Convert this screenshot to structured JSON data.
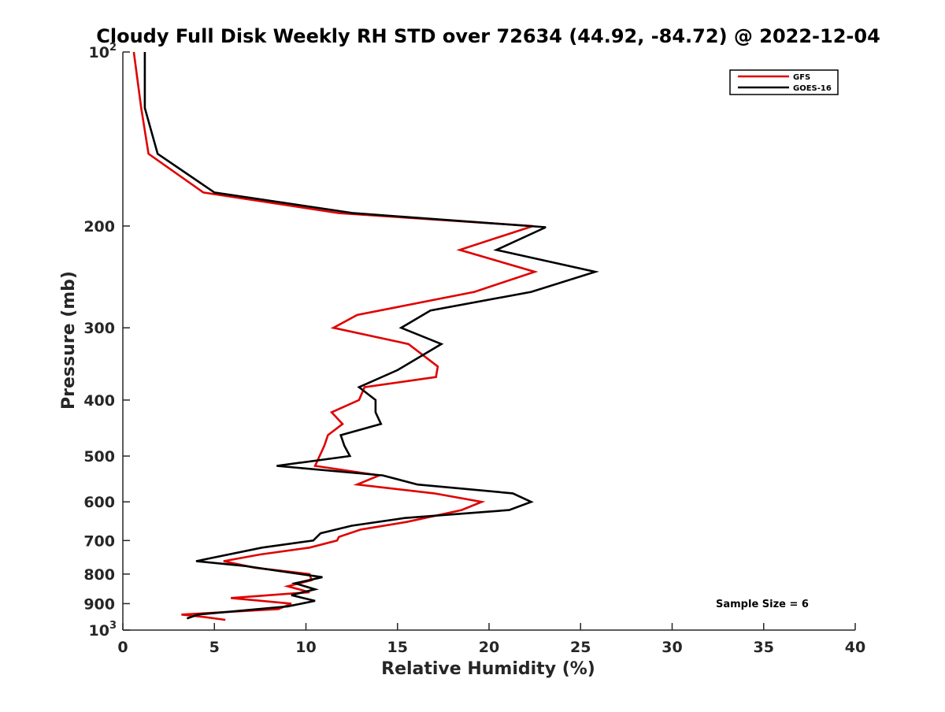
{
  "chart_data": {
    "type": "line",
    "title": "Cloudy Full Disk Weekly RH STD over 72634 (44.92, -84.72) @ 2022-12-04",
    "xlabel": "Relative Humidity (%)",
    "ylabel": "Pressure (mb)",
    "xlim": [
      0,
      40
    ],
    "ylim": [
      100,
      1000
    ],
    "y_scale": "log",
    "y_reversed": true,
    "grid": false,
    "legend_position": "top-right",
    "x_ticks": [
      "0",
      "5",
      "10",
      "15",
      "20",
      "25",
      "30",
      "35",
      "40"
    ],
    "y_ticks": [
      {
        "value": 100,
        "base": "10",
        "exp": "2",
        "label": ""
      },
      {
        "value": 200,
        "label": "200"
      },
      {
        "value": 300,
        "label": "300"
      },
      {
        "value": 400,
        "label": "400"
      },
      {
        "value": 500,
        "label": "500"
      },
      {
        "value": 600,
        "label": "600"
      },
      {
        "value": 700,
        "label": "700"
      },
      {
        "value": 800,
        "label": "800"
      },
      {
        "value": 900,
        "label": "900"
      },
      {
        "value": 1000,
        "base": "10",
        "exp": "3",
        "label": ""
      }
    ],
    "annotation": "Sample Size = 6",
    "series": [
      {
        "name": "GFS",
        "color": "#e00000",
        "x": [
          0.6,
          1.0,
          1.4,
          4.4,
          11.8,
          22.4,
          18.4,
          22.5,
          19.2,
          12.8,
          11.5,
          15.6,
          17.2,
          17.1,
          13.2,
          12.9,
          11.4,
          12.0,
          11.2,
          11.0,
          10.5,
          14.0,
          12.8,
          17.0,
          19.6,
          18.5,
          15.5,
          13.0,
          11.8,
          11.7,
          10.2,
          7.5,
          5.5,
          7.2,
          10.2,
          10.3,
          9.0,
          10.2,
          5.9,
          9.2,
          8.5,
          3.2,
          4.5,
          5.6
        ],
        "y": [
          100,
          125,
          150,
          175,
          190,
          200,
          220,
          240,
          260,
          285,
          300,
          320,
          350,
          365,
          380,
          400,
          420,
          440,
          460,
          480,
          520,
          540,
          560,
          580,
          600,
          620,
          650,
          670,
          690,
          700,
          720,
          740,
          760,
          780,
          800,
          820,
          840,
          860,
          880,
          900,
          920,
          940,
          950,
          960
        ]
      },
      {
        "name": "GOES-16",
        "color": "#000000",
        "x": [
          1.2,
          1.2,
          1.9,
          5.0,
          12.6,
          23.1,
          20.4,
          25.8,
          22.3,
          16.8,
          15.2,
          17.4,
          15.0,
          12.9,
          13.8,
          13.8,
          14.1,
          11.9,
          12.1,
          12.4,
          8.4,
          14.2,
          16.1,
          21.3,
          22.3,
          21.1,
          15.4,
          12.5,
          10.8,
          10.4,
          7.6,
          4.0,
          6.7,
          8.5,
          10.9,
          9.4,
          10.5,
          9.2,
          10.5,
          9.0,
          4.1,
          3.5
        ],
        "y": [
          100,
          125,
          150,
          175,
          190,
          201,
          220,
          240,
          260,
          280,
          300,
          320,
          355,
          380,
          400,
          420,
          440,
          460,
          480,
          500,
          520,
          540,
          560,
          580,
          600,
          620,
          640,
          660,
          680,
          700,
          720,
          760,
          775,
          790,
          810,
          830,
          850,
          870,
          890,
          910,
          940,
          955
        ]
      }
    ]
  }
}
